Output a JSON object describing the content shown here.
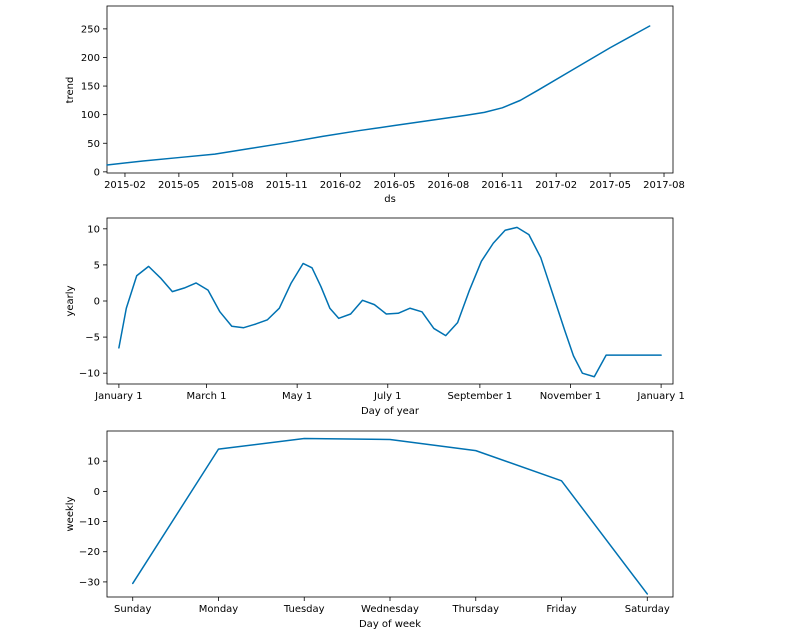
{
  "colors": {
    "line": "#0072B2"
  },
  "chart_data": [
    {
      "type": "line",
      "xlabel": "ds",
      "ylabel": "trend",
      "xlim": [
        0,
        31.5
      ],
      "ylim": [
        -2,
        290
      ],
      "xtick_values": [
        1,
        4,
        7,
        10,
        13,
        16,
        19,
        22,
        25,
        28,
        31
      ],
      "xtick_labels": [
        "2015-02",
        "2015-05",
        "2015-08",
        "2015-11",
        "2016-02",
        "2016-05",
        "2016-08",
        "2016-11",
        "2017-02",
        "2017-05",
        "2017-08"
      ],
      "ytick_values": [
        0,
        50,
        100,
        150,
        200,
        250
      ],
      "ytick_labels": [
        "0",
        "50",
        "100",
        "150",
        "200",
        "250"
      ],
      "series": [
        {
          "name": "trend",
          "x": [
            0,
            2,
            4,
            6,
            8,
            10,
            12,
            14,
            16,
            18,
            20,
            21,
            22,
            23,
            24,
            26,
            28,
            30.2
          ],
          "y": [
            12,
            19,
            25,
            31,
            41,
            51,
            62,
            72,
            81,
            90,
            99,
            104,
            112,
            125,
            143,
            180,
            217,
            255
          ]
        }
      ]
    },
    {
      "type": "line",
      "xlabel": "Day of year",
      "ylabel": "yearly",
      "xlim": [
        -8,
        373
      ],
      "ylim": [
        -11.5,
        11.5
      ],
      "xtick_values": [
        0,
        59,
        120,
        181,
        243,
        304,
        365
      ],
      "xtick_labels": [
        "January 1",
        "March 1",
        "May 1",
        "July 1",
        "September 1",
        "November 1",
        "January 1"
      ],
      "ytick_values": [
        -10,
        -5,
        0,
        5,
        10
      ],
      "ytick_labels": [
        "−10",
        "−5",
        "0",
        "5",
        "10"
      ],
      "series": [
        {
          "name": "yearly",
          "x": [
            0,
            5,
            12,
            20,
            28,
            36,
            44,
            52,
            60,
            68,
            76,
            84,
            92,
            100,
            108,
            116,
            124,
            130,
            136,
            142,
            148,
            156,
            164,
            172,
            180,
            188,
            196,
            204,
            212,
            220,
            228,
            236,
            244,
            252,
            260,
            268,
            276,
            284,
            292,
            300,
            306,
            312,
            320,
            328,
            336,
            344,
            350,
            356,
            362,
            365
          ],
          "y": [
            -6.5,
            -1.0,
            3.5,
            4.8,
            3.2,
            1.3,
            1.8,
            2.5,
            1.5,
            -1.5,
            -3.5,
            -3.7,
            -3.2,
            -2.6,
            -1.0,
            2.5,
            5.2,
            4.6,
            2.0,
            -1.0,
            -2.4,
            -1.8,
            0.1,
            -0.5,
            -1.8,
            -1.7,
            -1.0,
            -1.5,
            -3.8,
            -4.8,
            -3.0,
            1.5,
            5.5,
            8.0,
            9.8,
            10.2,
            9.2,
            6.0,
            1.0,
            -4.0,
            -7.6,
            -10.0,
            -10.5,
            -7.5,
            -7.5,
            -7.5,
            -7.5,
            -7.5,
            -7.5,
            -7.5
          ]
        }
      ]
    },
    {
      "type": "line",
      "xlabel": "Day of week",
      "ylabel": "weekly",
      "xlim": [
        -0.3,
        6.3
      ],
      "ylim": [
        -35,
        20
      ],
      "xtick_values": [
        0,
        1,
        2,
        3,
        4,
        5,
        6
      ],
      "xtick_labels": [
        "Sunday",
        "Monday",
        "Tuesday",
        "Wednesday",
        "Thursday",
        "Friday",
        "Saturday"
      ],
      "ytick_values": [
        -30,
        -20,
        -10,
        0,
        10
      ],
      "ytick_labels": [
        "−30",
        "−20",
        "−10",
        "0",
        "10"
      ],
      "series": [
        {
          "name": "weekly",
          "x": [
            0,
            1,
            2,
            3,
            4,
            5,
            6
          ],
          "y": [
            -30.5,
            14,
            17.5,
            17.2,
            13.5,
            3.5,
            -34
          ]
        }
      ]
    }
  ]
}
